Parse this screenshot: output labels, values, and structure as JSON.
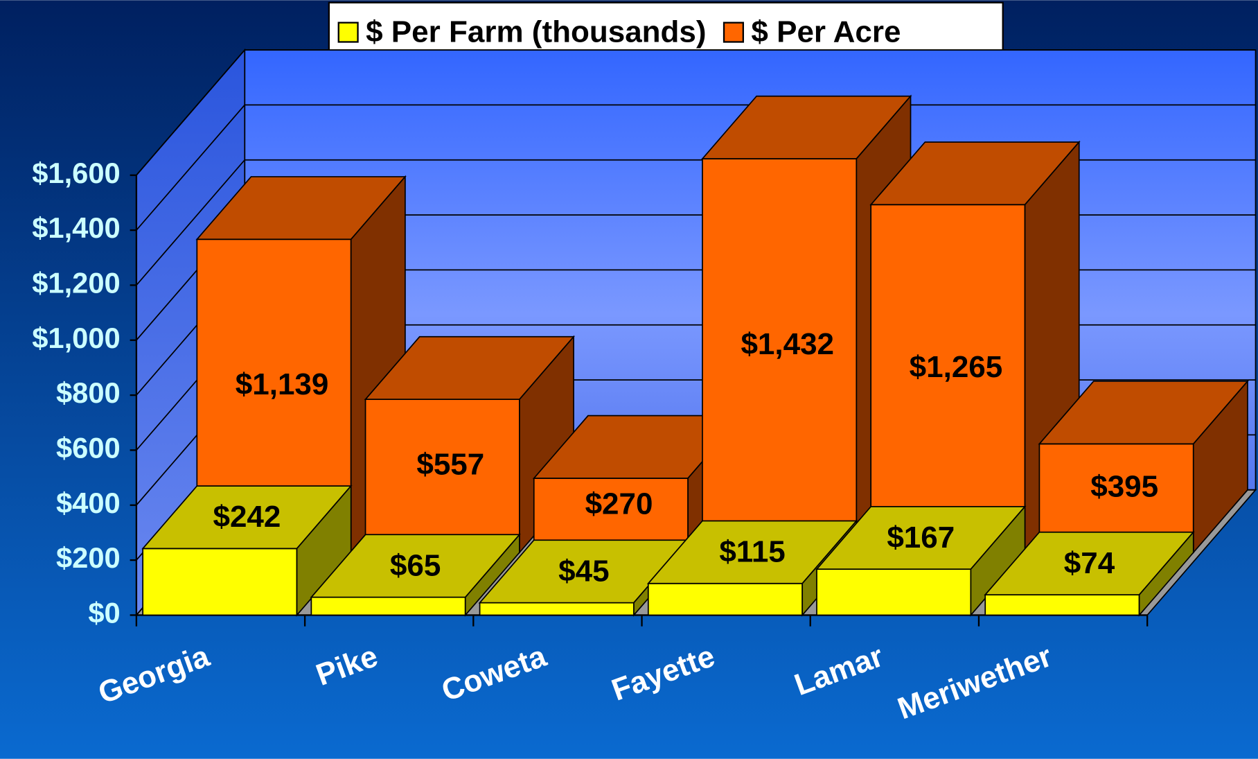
{
  "chart_data": {
    "type": "bar3d",
    "categories": [
      "Georgia",
      "Pike",
      "Coweta",
      "Fayette",
      "Lamar",
      "Meriwether"
    ],
    "series": [
      {
        "name": "$ Per Farm (thousands)",
        "color": "#ffff00",
        "values": [
          242,
          65,
          45,
          115,
          167,
          74
        ],
        "value_labels": [
          "$242",
          "$65",
          "$45",
          "$115",
          "$167",
          "$74"
        ]
      },
      {
        "name": "$ Per Acre",
        "color": "#ff6600",
        "values": [
          1139,
          557,
          270,
          1432,
          1265,
          395
        ],
        "value_labels": [
          "$1,139",
          "$557",
          "$270",
          "$1,432",
          "$1,265",
          "$395"
        ]
      }
    ],
    "ylim": [
      0,
      1600
    ],
    "yticks": [
      {
        "value": 0,
        "label": "$0"
      },
      {
        "value": 200,
        "label": "$200"
      },
      {
        "value": 400,
        "label": "$400"
      },
      {
        "value": 600,
        "label": "$600"
      },
      {
        "value": 800,
        "label": "$800"
      },
      {
        "value": 1000,
        "label": "$1,000"
      },
      {
        "value": 1200,
        "label": "$1,200"
      },
      {
        "value": 1400,
        "label": "$1,400"
      },
      {
        "value": 1600,
        "label": "$1,600"
      }
    ],
    "grid": true,
    "legend": "top"
  }
}
